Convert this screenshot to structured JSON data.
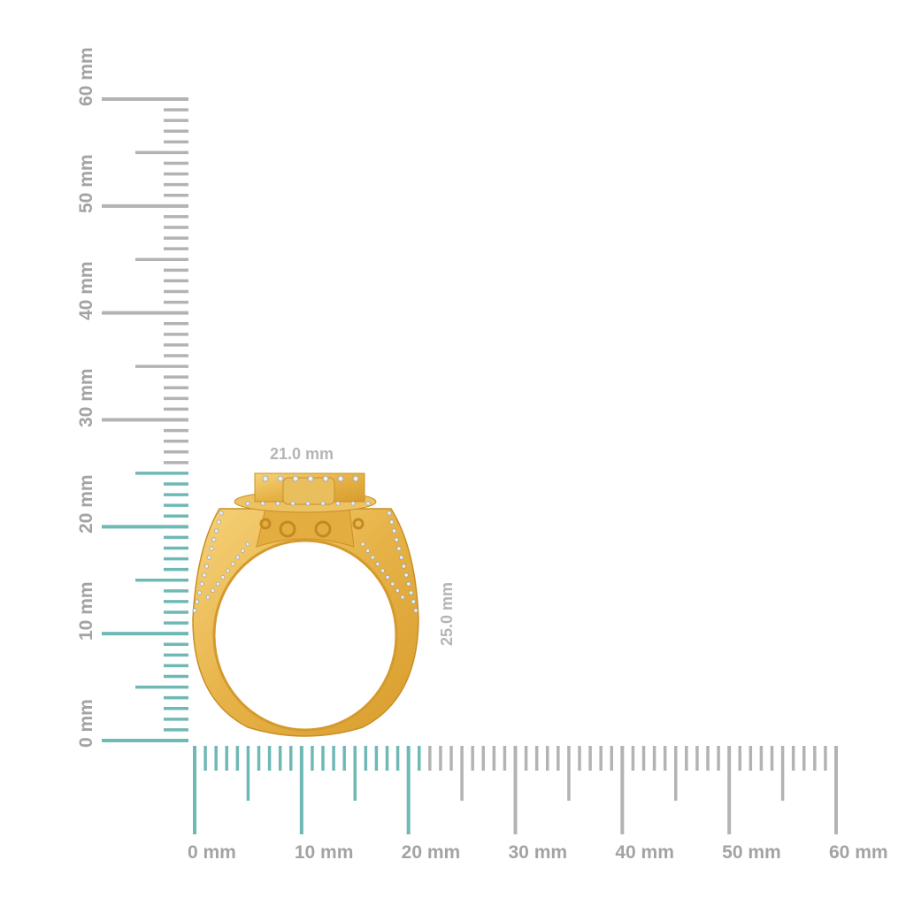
{
  "rulers": {
    "unit": "mm",
    "max_mm": 60,
    "horizontal_labels": [
      "0 mm",
      "10 mm",
      "20 mm",
      "30 mm",
      "40 mm",
      "50 mm",
      "60 mm"
    ],
    "vertical_labels": [
      "0 mm",
      "10 mm",
      "20 mm",
      "30 mm",
      "40 mm",
      "50 mm",
      "60 mm"
    ],
    "highlight_width_mm": 21,
    "highlight_height_mm": 25,
    "colors": {
      "highlight": "#6fb9b5",
      "default": "#b3b3b3",
      "label": "#a3a3a3"
    }
  },
  "dimensions": {
    "width_label": "21.0 mm",
    "height_label": "25.0 mm"
  },
  "product": {
    "type": "ring",
    "metal_color": "#e9b84c"
  }
}
